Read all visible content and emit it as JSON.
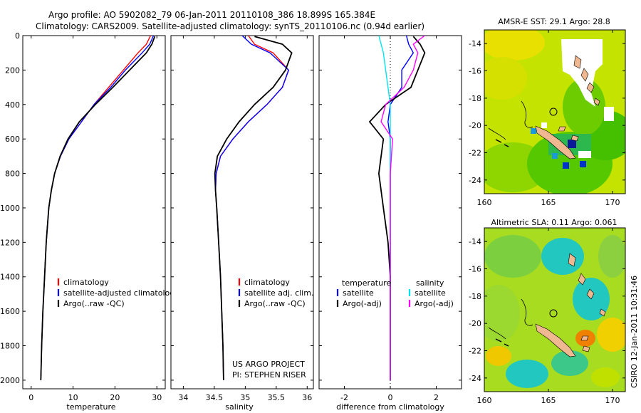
{
  "header": {
    "line1": "Argo profile: AO 5902082_79 06-Jan-2011 20110108_386 18.899S 165.384E",
    "line2": "Climatology: CARS2009. Satellite-adjusted climatology: synTS_20110106.nc (0.94d earlier)"
  },
  "colors": {
    "climatology": "#ff0000",
    "satellite": "#0000ff",
    "argo": "#000000",
    "cyan": "#00e5ee",
    "magenta": "#ff00ff"
  },
  "chart_data": [
    {
      "type": "line",
      "name": "temperature",
      "xlabel": "temperature",
      "ylabel": "",
      "xlim": [
        -2,
        32
      ],
      "ylim": [
        2050,
        0
      ],
      "xticks": [
        0,
        10,
        20,
        30
      ],
      "yticks": [
        0,
        200,
        400,
        600,
        800,
        1000,
        1200,
        1400,
        1600,
        1800,
        2000
      ],
      "legend": [
        {
          "label": "climatology",
          "color": "#ff0000"
        },
        {
          "label": "satellite-adjusted climatology",
          "color": "#0000ff"
        },
        {
          "label": "Argo(..raw -QC)",
          "color": "#000000"
        }
      ],
      "series": [
        {
          "name": "climatology",
          "color": "#ff0000",
          "x": [
            28.5,
            27.5,
            25.5,
            22,
            18.5,
            15,
            12,
            9,
            7,
            5.6,
            4.8,
            4.2,
            3.6,
            3.2,
            2.8,
            2.5,
            2.3
          ],
          "y": [
            0,
            50,
            100,
            200,
            300,
            400,
            500,
            600,
            700,
            800,
            900,
            1000,
            1200,
            1400,
            1600,
            1800,
            2000
          ]
        },
        {
          "name": "satellite-adjusted climatology",
          "color": "#0000ff",
          "x": [
            29.2,
            28.3,
            26.5,
            22.5,
            19,
            15,
            12,
            9,
            7,
            5.6,
            4.8,
            4.2,
            3.6,
            3.2,
            2.8,
            2.5,
            2.3
          ],
          "y": [
            0,
            50,
            100,
            200,
            300,
            400,
            500,
            600,
            700,
            800,
            900,
            1000,
            1200,
            1400,
            1600,
            1800,
            2000
          ]
        },
        {
          "name": "Argo(..raw -QC)",
          "color": "#000000",
          "x": [
            29.5,
            28.8,
            27.5,
            23.5,
            19.5,
            15.3,
            11.5,
            8.8,
            6.9,
            5.6,
            4.8,
            4.2,
            3.6,
            3.2,
            2.8,
            2.5,
            2.3
          ],
          "y": [
            5,
            50,
            100,
            200,
            300,
            400,
            500,
            600,
            700,
            800,
            900,
            1000,
            1200,
            1400,
            1600,
            1800,
            2000
          ]
        }
      ]
    },
    {
      "type": "line",
      "name": "salinity",
      "xlabel": "salinity",
      "xlim": [
        33.8,
        36.1
      ],
      "ylim": [
        2050,
        0
      ],
      "xticks": [
        34,
        34.5,
        35,
        35.5,
        36
      ],
      "legend": [
        {
          "label": "climatology",
          "color": "#ff0000"
        },
        {
          "label": "satellite adj. clim.",
          "color": "#0000ff"
        },
        {
          "label": "Argo(..raw -QC)",
          "color": "#000000"
        }
      ],
      "annotations": [
        "US ARGO PROJECT",
        "PI: STEPHEN RISER"
      ],
      "series": [
        {
          "name": "climatology",
          "color": "#ff0000",
          "x": [
            35.05,
            35.15,
            35.45,
            35.7,
            35.6,
            35.35,
            35.05,
            34.8,
            34.6,
            34.53,
            34.52,
            34.54,
            34.57,
            34.6,
            34.62,
            34.64,
            34.65
          ],
          "y": [
            0,
            50,
            100,
            200,
            300,
            400,
            500,
            600,
            700,
            800,
            900,
            1000,
            1200,
            1400,
            1600,
            1800,
            2000
          ]
        },
        {
          "name": "satellite adj. clim.",
          "color": "#0000ff",
          "x": [
            34.95,
            35.1,
            35.4,
            35.7,
            35.6,
            35.35,
            35.05,
            34.8,
            34.6,
            34.53,
            34.52,
            34.54,
            34.57,
            34.6,
            34.62,
            34.64,
            34.65
          ],
          "y": [
            0,
            50,
            100,
            200,
            300,
            400,
            500,
            600,
            700,
            800,
            900,
            1000,
            1200,
            1400,
            1600,
            1800,
            2000
          ]
        },
        {
          "name": "Argo(..raw -QC)",
          "color": "#000000",
          "x": [
            35.15,
            35.6,
            35.75,
            35.65,
            35.45,
            35.15,
            34.9,
            34.7,
            34.55,
            34.51,
            34.52,
            34.54,
            34.57,
            34.6,
            34.62,
            34.64,
            34.65
          ],
          "y": [
            5,
            50,
            100,
            200,
            300,
            400,
            500,
            600,
            700,
            800,
            900,
            1000,
            1200,
            1400,
            1600,
            1800,
            2000
          ]
        }
      ]
    },
    {
      "type": "line",
      "name": "difference",
      "xlabel": "difference from climatology",
      "xlim": [
        -3.1,
        3.1
      ],
      "ylim": [
        2050,
        0
      ],
      "xticks": [
        -2,
        0,
        2
      ],
      "legend_headers": [
        "temperature",
        "salinity"
      ],
      "legend": [
        {
          "label": "satellite",
          "color": "#0000ff"
        },
        {
          "label": "Argo(-adj)",
          "color": "#000000"
        },
        {
          "label": "satellite",
          "color": "#00e5ee"
        },
        {
          "label": "Argo(-adj)",
          "color": "#ff00ff"
        }
      ],
      "series": [
        {
          "name": "temperature satellite",
          "color": "#0000ff",
          "x": [
            0.7,
            0.8,
            1.0,
            0.5,
            0.5,
            0,
            -0.1,
            0,
            0,
            0,
            0,
            0,
            0,
            0
          ],
          "y": [
            0,
            50,
            100,
            200,
            300,
            400,
            500,
            600,
            800,
            1000,
            1200,
            1400,
            1600,
            2000
          ]
        },
        {
          "name": "temperature Argo(-adj)",
          "color": "#000000",
          "x": [
            1.0,
            1.3,
            1.5,
            1.2,
            0.9,
            -0.2,
            -0.9,
            -0.3,
            -0.5,
            -0.3,
            -0.1,
            0,
            0,
            0
          ],
          "y": [
            5,
            50,
            100,
            200,
            300,
            400,
            500,
            600,
            800,
            1000,
            1200,
            1400,
            1600,
            2000
          ]
        },
        {
          "name": "salinity satellite",
          "color": "#00e5ee",
          "x": [
            -0.5,
            -0.4,
            -0.3,
            -0.2,
            -0.1,
            0,
            0,
            0,
            0,
            0,
            0,
            0
          ],
          "y": [
            0,
            50,
            100,
            200,
            300,
            400,
            500,
            600,
            800,
            1000,
            1400,
            2000
          ]
        },
        {
          "name": "salinity Argo(-adj)",
          "color": "#ff00ff",
          "x": [
            1.5,
            1.0,
            1.2,
            1.0,
            0.6,
            -0.2,
            -0.4,
            0.1,
            0,
            0,
            0,
            0
          ],
          "y": [
            0,
            50,
            100,
            200,
            300,
            400,
            500,
            600,
            800,
            1000,
            1400,
            2000
          ]
        }
      ]
    },
    {
      "type": "heatmap",
      "name": "sst-map",
      "title": "AMSR-E SST: 29.1  Argo: 28.8",
      "xlim": [
        160,
        171
      ],
      "ylim": [
        -25,
        -13
      ],
      "xticks": [
        160,
        165,
        170
      ],
      "yticks": [
        -14,
        -16,
        -18,
        -20,
        -22,
        -24
      ]
    },
    {
      "type": "heatmap",
      "name": "sla-map",
      "title": "Altimetric SLA: 0.11  Argo: 0.061",
      "xlim": [
        160,
        171
      ],
      "ylim": [
        -25,
        -13
      ],
      "xticks": [
        160,
        165,
        170
      ],
      "yticks": [
        -14,
        -16,
        -18,
        -20,
        -22,
        -24
      ]
    }
  ],
  "footer": {
    "stamp": "CSIRO 12-Jan-2011 10:31:46"
  }
}
